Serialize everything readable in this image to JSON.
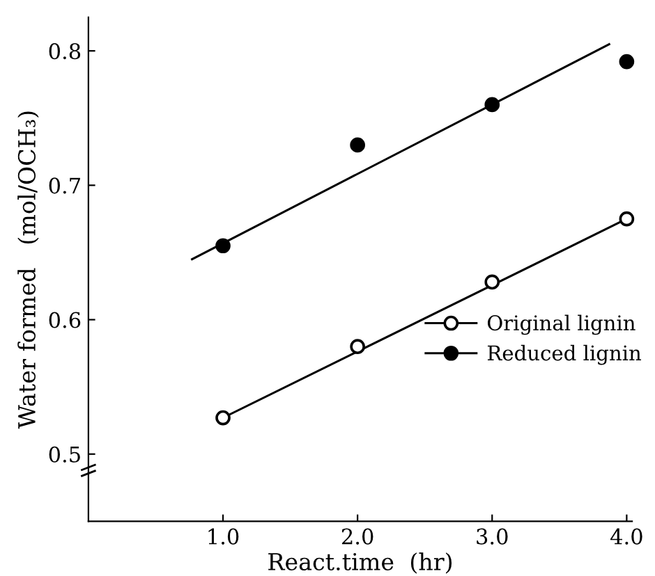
{
  "chart_data": {
    "type": "scatter",
    "xlabel": "React.time  (hr)",
    "ylabel": "Water formed   (mol/OCH₃)",
    "xlim": [
      0,
      4.04
    ],
    "ylim": [
      0.45,
      0.825
    ],
    "xticks": [
      {
        "value": 1,
        "label": "1.0"
      },
      {
        "value": 2,
        "label": "2.0"
      },
      {
        "value": 3,
        "label": "3.0"
      },
      {
        "value": 4,
        "label": "4.0"
      }
    ],
    "yticks": [
      0.5,
      0.6,
      0.7,
      0.8
    ],
    "grid": false,
    "legend": "right",
    "series": [
      {
        "name": "Original lignin",
        "color": "#ffffff",
        "marker": "circle",
        "x": [
          1,
          2,
          3,
          4
        ],
        "values": [
          0.527,
          0.58,
          0.628,
          0.675
        ]
      },
      {
        "name": "Reduced lignin",
        "color": "#000000",
        "marker": "circle",
        "x": [
          1,
          2,
          3,
          4
        ],
        "values": [
          0.655,
          0.73,
          0.76,
          0.792
        ]
      },
      {
        "type": "line",
        "color": "#000000",
        "x": [
          1,
          4
        ],
        "values": [
          0.527,
          0.675
        ]
      },
      {
        "type": "line",
        "color": "#000000",
        "x": [
          0.77,
          3.87
        ],
        "values": [
          0.645,
          0.805
        ]
      }
    ]
  }
}
